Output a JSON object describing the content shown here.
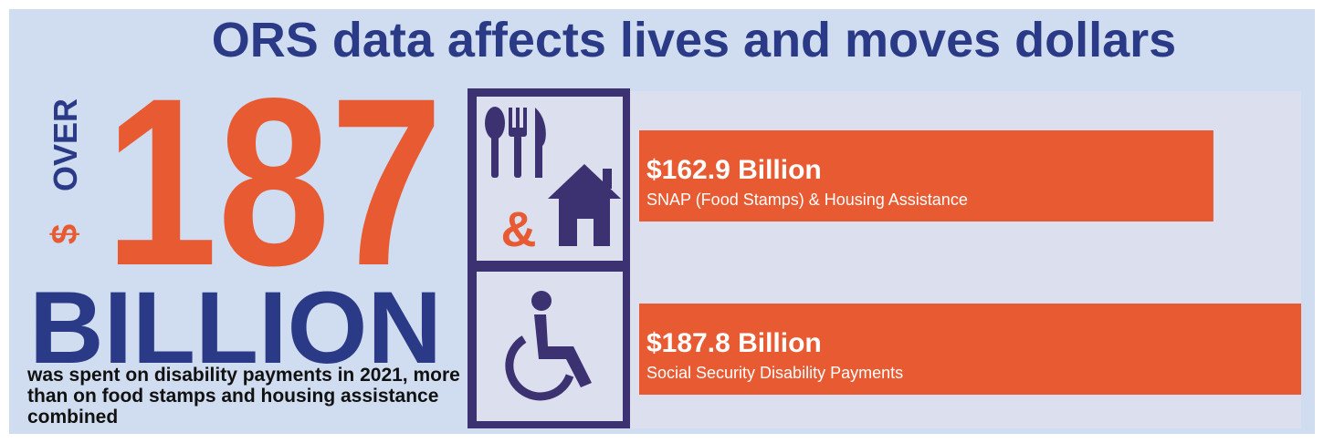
{
  "chart_data": {
    "type": "bar",
    "orientation": "horizontal",
    "title": "ORS data affects lives and moves dollars",
    "categories": [
      "SNAP (Food Stamps) & Housing Assistance",
      "Social Security Disability Payments"
    ],
    "values": [
      162.9,
      187.8
    ],
    "value_labels": [
      "$162.9 Billion",
      "$187.8 Billion"
    ],
    "color": "#e85a32",
    "annotations": [
      "$",
      "OVER",
      "187",
      "BILLION",
      "was spent on disability payments in 2021, more than on food stamps and housing assistance combined",
      "&"
    ]
  }
}
